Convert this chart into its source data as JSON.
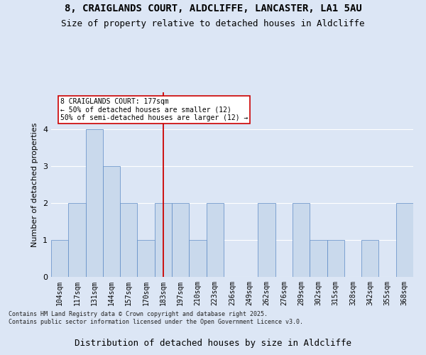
{
  "title1": "8, CRAIGLANDS COURT, ALDCLIFFE, LANCASTER, LA1 5AU",
  "title2": "Size of property relative to detached houses in Aldcliffe",
  "xlabel": "Distribution of detached houses by size in Aldcliffe",
  "ylabel": "Number of detached properties",
  "categories": [
    "104sqm",
    "117sqm",
    "131sqm",
    "144sqm",
    "157sqm",
    "170sqm",
    "183sqm",
    "197sqm",
    "210sqm",
    "223sqm",
    "236sqm",
    "249sqm",
    "262sqm",
    "276sqm",
    "289sqm",
    "302sqm",
    "315sqm",
    "328sqm",
    "342sqm",
    "355sqm",
    "368sqm"
  ],
  "values": [
    1,
    2,
    4,
    3,
    2,
    1,
    2,
    2,
    1,
    2,
    0,
    0,
    2,
    0,
    2,
    1,
    1,
    0,
    1,
    0,
    2
  ],
  "bar_color": "#c9d9ec",
  "bar_edge_color": "#5b8ac5",
  "highlight_index": 6,
  "highlight_line_color": "#cc0000",
  "ylim": [
    0,
    5
  ],
  "yticks": [
    0,
    1,
    2,
    3,
    4
  ],
  "annotation_text": "8 CRAIGLANDS COURT: 177sqm\n← 50% of detached houses are smaller (12)\n50% of semi-detached houses are larger (12) →",
  "annotation_box_color": "#ffffff",
  "annotation_box_edge_color": "#cc0000",
  "footer": "Contains HM Land Registry data © Crown copyright and database right 2025.\nContains public sector information licensed under the Open Government Licence v3.0.",
  "bg_color": "#dce6f5",
  "grid_color": "#ffffff",
  "title_fontsize": 10,
  "subtitle_fontsize": 9,
  "tick_fontsize": 7,
  "ylabel_fontsize": 8,
  "footer_fontsize": 6
}
